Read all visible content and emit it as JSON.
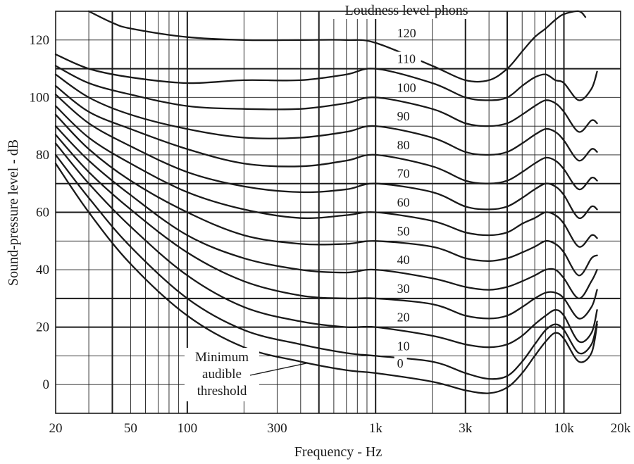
{
  "chart_data": {
    "type": "line",
    "title": "Loudness level-phons",
    "xlabel": "Frequency - Hz",
    "ylabel": "Sound-pressure level - dB",
    "x_scale": "log",
    "xlim": [
      20,
      20000
    ],
    "ylim": [
      -10,
      130
    ],
    "x_ticks": [
      {
        "value": 20,
        "label": "20"
      },
      {
        "value": 50,
        "label": "50"
      },
      {
        "value": 100,
        "label": "100"
      },
      {
        "value": 300,
        "label": "300"
      },
      {
        "value": 1000,
        "label": "1k"
      },
      {
        "value": 3000,
        "label": "3k"
      },
      {
        "value": 10000,
        "label": "10k"
      },
      {
        "value": 20000,
        "label": "20k"
      }
    ],
    "y_ticks": [
      {
        "value": 0,
        "label": "0"
      },
      {
        "value": 20,
        "label": "20"
      },
      {
        "value": 40,
        "label": "40"
      },
      {
        "value": 60,
        "label": "60"
      },
      {
        "value": 80,
        "label": "80"
      },
      {
        "value": 100,
        "label": "100"
      },
      {
        "value": 120,
        "label": "120"
      }
    ],
    "x_gridlines": [
      20,
      30,
      40,
      50,
      60,
      70,
      80,
      90,
      100,
      200,
      300,
      400,
      500,
      600,
      700,
      800,
      900,
      1000,
      2000,
      3000,
      4000,
      5000,
      6000,
      7000,
      8000,
      9000,
      10000,
      20000
    ],
    "x_heavy_gridlines": [
      40,
      100,
      500,
      1000,
      3000,
      5000,
      10000
    ],
    "y_gridlines": [
      -10,
      0,
      10,
      20,
      30,
      40,
      50,
      60,
      70,
      80,
      90,
      100,
      110,
      120,
      130
    ],
    "y_heavy_gridlines": [
      20,
      30,
      60,
      70,
      110
    ],
    "annotation": {
      "lines": [
        "Minimum",
        "audible",
        "threshold"
      ],
      "points_to": {
        "x": 400,
        "y": 8
      }
    },
    "series": [
      {
        "name": "0",
        "x": [
          20,
          30,
          50,
          100,
          200,
          400,
          700,
          1000,
          2000,
          3000,
          4000,
          5000,
          6000,
          7000,
          8000,
          9000,
          10000,
          12000,
          14000,
          15000
        ],
        "y": [
          77,
          60,
          42,
          24,
          13,
          8,
          5,
          4,
          1,
          -2,
          -3,
          -1,
          4,
          10,
          15,
          18,
          16,
          8,
          11,
          21
        ]
      },
      {
        "name": "10",
        "x": [
          20,
          30,
          50,
          100,
          200,
          400,
          700,
          1000,
          2000,
          3000,
          4000,
          5000,
          6000,
          7000,
          8000,
          9000,
          10000,
          12000,
          14000,
          15000
        ],
        "y": [
          80,
          65,
          48,
          30,
          19,
          14,
          11,
          10,
          8,
          4,
          2,
          3,
          8,
          14,
          19,
          21,
          19,
          11,
          14,
          22
        ]
      },
      {
        "name": "20",
        "x": [
          20,
          30,
          50,
          100,
          200,
          400,
          700,
          1000,
          2000,
          3000,
          4000,
          5000,
          6000,
          7000,
          8000,
          9000,
          10000,
          12000,
          14000,
          15000
        ],
        "y": [
          84,
          70,
          55,
          38,
          27,
          22,
          20,
          20,
          17,
          14,
          13,
          14,
          17,
          21,
          24,
          26,
          24,
          15,
          18,
          26
        ]
      },
      {
        "name": "30",
        "x": [
          20,
          30,
          50,
          100,
          200,
          400,
          700,
          1000,
          2000,
          3000,
          4000,
          5000,
          6000,
          7000,
          8000,
          9000,
          10000,
          12000,
          14000,
          15000
        ],
        "y": [
          87,
          74,
          61,
          46,
          36,
          31,
          30,
          30,
          28,
          24,
          23,
          24,
          27,
          30,
          32,
          32,
          30,
          23,
          27,
          33
        ]
      },
      {
        "name": "40",
        "x": [
          20,
          30,
          50,
          100,
          200,
          400,
          700,
          1000,
          2000,
          3000,
          4000,
          5000,
          6000,
          7000,
          8000,
          9000,
          10000,
          12000,
          14000,
          15000
        ],
        "y": [
          90,
          78,
          66,
          52,
          44,
          40,
          39,
          40,
          37,
          34,
          33,
          34,
          36,
          38,
          40,
          40,
          37,
          30,
          36,
          40
        ]
      },
      {
        "name": "50",
        "x": [
          20,
          30,
          50,
          100,
          200,
          400,
          700,
          1000,
          2000,
          3000,
          4000,
          5000,
          6000,
          7000,
          8000,
          9000,
          10000,
          12000,
          14000,
          15000
        ],
        "y": [
          94,
          82,
          71,
          60,
          52,
          49,
          49,
          50,
          48,
          44,
          43,
          44,
          46,
          48,
          50,
          49,
          46,
          38,
          44,
          45
        ]
      },
      {
        "name": "60",
        "x": [
          20,
          30,
          50,
          100,
          200,
          400,
          700,
          1000,
          2000,
          3000,
          4000,
          5000,
          6000,
          7000,
          8000,
          9000,
          10000,
          12000,
          14000,
          15000
        ],
        "y": [
          97,
          86,
          77,
          67,
          61,
          58,
          59,
          60,
          57,
          53,
          52,
          53,
          56,
          58,
          60,
          59,
          56,
          48,
          52,
          51
        ]
      },
      {
        "name": "70",
        "x": [
          20,
          30,
          50,
          100,
          200,
          400,
          700,
          1000,
          2000,
          3000,
          4000,
          5000,
          6000,
          7000,
          8000,
          9000,
          10000,
          12000,
          14000,
          15000
        ],
        "y": [
          101,
          91,
          83,
          74,
          69,
          67,
          68,
          70,
          67,
          62,
          61,
          62,
          65,
          68,
          70,
          69,
          66,
          58,
          62,
          61
        ]
      },
      {
        "name": "80",
        "x": [
          20,
          30,
          50,
          100,
          200,
          400,
          700,
          1000,
          2000,
          3000,
          4000,
          5000,
          6000,
          7000,
          8000,
          9000,
          10000,
          12000,
          14000,
          15000
        ],
        "y": [
          104,
          95,
          89,
          82,
          77,
          76,
          78,
          80,
          76,
          71,
          70,
          71,
          74,
          77,
          79,
          78,
          75,
          68,
          72,
          71
        ]
      },
      {
        "name": "90",
        "x": [
          20,
          30,
          50,
          100,
          200,
          400,
          700,
          1000,
          2000,
          3000,
          4000,
          5000,
          6000,
          7000,
          8000,
          9000,
          10000,
          12000,
          14000,
          15000
        ],
        "y": [
          108,
          100,
          94,
          89,
          86,
          86,
          88,
          90,
          86,
          81,
          80,
          81,
          84,
          87,
          89,
          88,
          85,
          78,
          82,
          81
        ]
      },
      {
        "name": "100",
        "x": [
          20,
          30,
          50,
          100,
          200,
          400,
          700,
          1000,
          2000,
          3000,
          4000,
          5000,
          6000,
          7000,
          8000,
          9000,
          10000,
          12000,
          14000,
          15000
        ],
        "y": [
          111,
          105,
          101,
          97,
          96,
          96,
          98,
          100,
          96,
          91,
          90,
          91,
          94,
          97,
          99,
          98,
          95,
          88,
          92,
          91
        ]
      },
      {
        "name": "110",
        "x": [
          20,
          30,
          50,
          100,
          200,
          400,
          700,
          1000,
          2000,
          3000,
          4000,
          5000,
          6000,
          7000,
          8000,
          9000,
          10000,
          12000,
          14000,
          15000
        ],
        "y": [
          115,
          110,
          107,
          105,
          106,
          106,
          108,
          110,
          105,
          100,
          99,
          100,
          104,
          107,
          108,
          106,
          105,
          99,
          103,
          109
        ]
      },
      {
        "name": "120",
        "x": [
          30,
          40,
          50,
          100,
          200,
          400,
          700,
          1000,
          2000,
          3000,
          4000,
          5000,
          6000,
          7000,
          8000,
          9000,
          10000,
          12000,
          13000
        ],
        "y": [
          130,
          126,
          124,
          121,
          120,
          120,
          120,
          119,
          111,
          106,
          106,
          110,
          116,
          121,
          124,
          127,
          129,
          130,
          128
        ]
      }
    ]
  }
}
